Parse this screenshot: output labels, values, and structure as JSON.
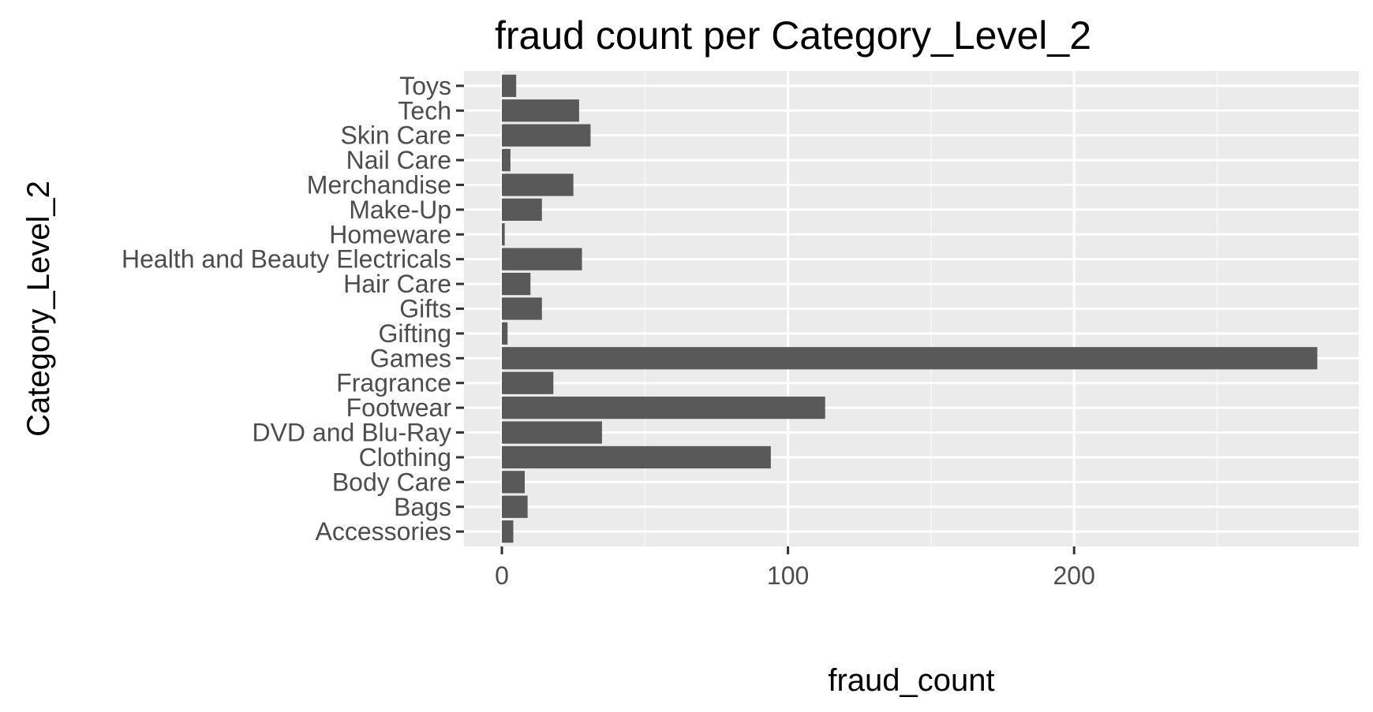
{
  "chart_data": {
    "type": "bar",
    "orientation": "horizontal",
    "title": "fraud count per Category_Level_2",
    "xlabel": "fraud_count",
    "ylabel": "Category_Level_2",
    "categories": [
      "Accessories",
      "Bags",
      "Body Care",
      "Clothing",
      "DVD and Blu-Ray",
      "Footwear",
      "Fragrance",
      "Games",
      "Gifting",
      "Gifts",
      "Hair Care",
      "Health and Beauty Electricals",
      "Homeware",
      "Make-Up",
      "Merchandise",
      "Nail Care",
      "Skin Care",
      "Tech",
      "Toys"
    ],
    "values": [
      4,
      9,
      8,
      94,
      35,
      113,
      18,
      285,
      2,
      14,
      10,
      28,
      1,
      14,
      25,
      3,
      31,
      27,
      5
    ],
    "xlim": [
      0,
      300
    ],
    "x_ticks": [
      0,
      100,
      200
    ],
    "x_tick_labels": [
      "0",
      "100",
      "200"
    ],
    "grid": true,
    "legend": "none",
    "colors": {
      "bar": "#595959",
      "panel_background": "#ebebeb",
      "grid_major": "#ffffff",
      "grid_minor": "#f5f5f5",
      "tick_text": "#4d4d4d",
      "axis_tick": "#333333"
    }
  }
}
